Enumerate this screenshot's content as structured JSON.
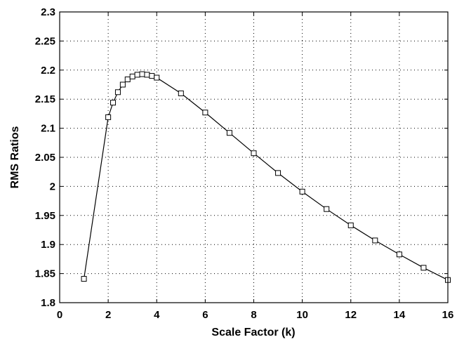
{
  "chart_data": {
    "type": "line",
    "title": "",
    "xlabel": "Scale Factor (k)",
    "ylabel": "RMS Ratios",
    "xlim": [
      0,
      16
    ],
    "ylim": [
      1.8,
      2.3
    ],
    "xticks": [
      0,
      2,
      4,
      6,
      8,
      10,
      12,
      14,
      16
    ],
    "yticks": [
      1.8,
      1.85,
      1.9,
      1.95,
      2,
      2.05,
      2.1,
      2.15,
      2.2,
      2.25,
      2.3
    ],
    "xtick_labels": [
      "0",
      "2",
      "4",
      "6",
      "8",
      "10",
      "12",
      "14",
      "16"
    ],
    "ytick_labels": [
      "1.8",
      "1.85",
      "1.9",
      "1.95",
      "2",
      "2.05",
      "2.1",
      "2.15",
      "2.2",
      "2.25",
      "2.3"
    ],
    "grid": "dotted",
    "marker": "square",
    "line_color": "#000000",
    "series": [
      {
        "x": [
          1,
          2,
          2.2,
          2.4,
          2.6,
          2.8,
          3,
          3.2,
          3.4,
          3.6,
          3.8,
          4,
          5,
          6,
          7,
          8,
          9,
          10,
          11,
          12,
          13,
          14,
          15,
          16
        ],
        "y": [
          1.841,
          2.119,
          2.144,
          2.162,
          2.175,
          2.184,
          2.189,
          2.192,
          2.193,
          2.192,
          2.19,
          2.187,
          2.16,
          2.127,
          2.092,
          2.057,
          2.023,
          1.991,
          1.961,
          1.933,
          1.907,
          1.883,
          1.86,
          1.839
        ]
      }
    ]
  }
}
